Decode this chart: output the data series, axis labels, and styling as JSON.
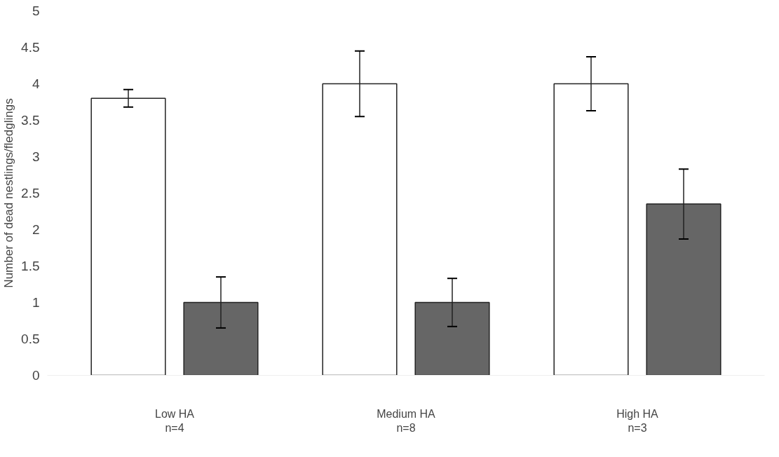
{
  "chart_data": {
    "type": "bar",
    "ylabel": "Number of dead nestlings/fledglings",
    "categories": [
      "Low HA\nn=4",
      "Medium HA\nn=8",
      "High HA\nn=3"
    ],
    "series": [
      {
        "color": "#ffffff",
        "values": [
          3.8,
          4.0,
          4.0
        ],
        "errors": [
          0.12,
          0.45,
          0.37
        ]
      },
      {
        "color": "#666666",
        "values": [
          1.0,
          1.0,
          2.35
        ],
        "errors": [
          0.35,
          0.33,
          0.48
        ]
      }
    ],
    "ylim": [
      0,
      5
    ],
    "yticks": [
      0,
      0.5,
      1,
      1.5,
      2,
      2.5,
      3,
      3.5,
      4,
      4.5,
      5
    ],
    "grid": false
  }
}
